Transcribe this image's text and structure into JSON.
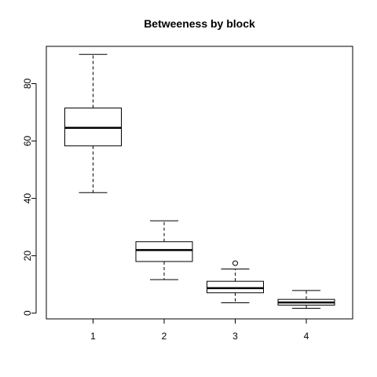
{
  "chart_data": {
    "type": "boxplot",
    "title": "Betweeness by block",
    "xlabel": "",
    "ylabel": "",
    "categories": [
      "1",
      "2",
      "3",
      "4"
    ],
    "boxes": [
      {
        "category": "1",
        "whisker_low": 42,
        "q1": 58.3,
        "median": 64.6,
        "q3": 71.5,
        "whisker_high": 90.2,
        "outliers": []
      },
      {
        "category": "2",
        "whisker_low": 11.7,
        "q1": 18.0,
        "median": 22.0,
        "q3": 24.9,
        "whisker_high": 32.2,
        "outliers": []
      },
      {
        "category": "3",
        "whisker_low": 3.6,
        "q1": 7.1,
        "median": 8.7,
        "q3": 11.1,
        "whisker_high": 15.4,
        "outliers": [
          17.4
        ]
      },
      {
        "category": "4",
        "whisker_low": 1.7,
        "q1": 2.8,
        "median": 3.7,
        "q3": 4.8,
        "whisker_high": 7.9,
        "outliers": []
      }
    ],
    "y_ticks": [
      0,
      20,
      40,
      60,
      80
    ],
    "ylim": [
      -2,
      93
    ],
    "grid": false
  }
}
